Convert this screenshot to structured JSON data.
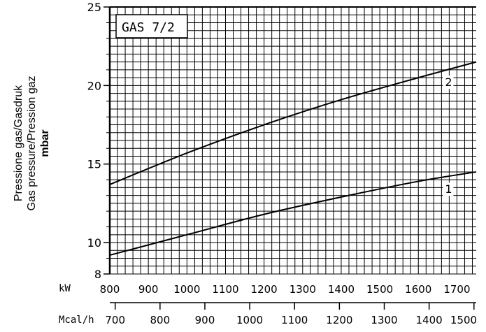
{
  "chart_data": {
    "type": "line",
    "title": "GAS 7/2",
    "ylabel_lines": [
      "Pressione gas/Gasdruk",
      "Gas pressure/Pression gaz"
    ],
    "yunit": "mbar",
    "ylim": [
      8,
      25
    ],
    "yticks": [
      8,
      10,
      15,
      20,
      25
    ],
    "x_unit": "kW",
    "xlim": [
      800,
      1750
    ],
    "xticks": [
      800,
      900,
      1000,
      1100,
      1200,
      1300,
      1400,
      1500,
      1600,
      1700
    ],
    "x2_unit": "Mcal/h",
    "x2_ticks": [
      700,
      800,
      900,
      1000,
      1100,
      1200,
      1300,
      1400,
      1500
    ],
    "grid": true,
    "series": [
      {
        "name": "1",
        "x": [
          800,
          1000,
          1200,
          1400,
          1600,
          1750
        ],
        "y": [
          9.2,
          10.5,
          11.8,
          12.9,
          13.9,
          14.5
        ]
      },
      {
        "name": "2",
        "x": [
          800,
          1000,
          1200,
          1400,
          1600,
          1750
        ],
        "y": [
          13.7,
          15.7,
          17.5,
          19.1,
          20.5,
          21.5
        ]
      }
    ]
  }
}
